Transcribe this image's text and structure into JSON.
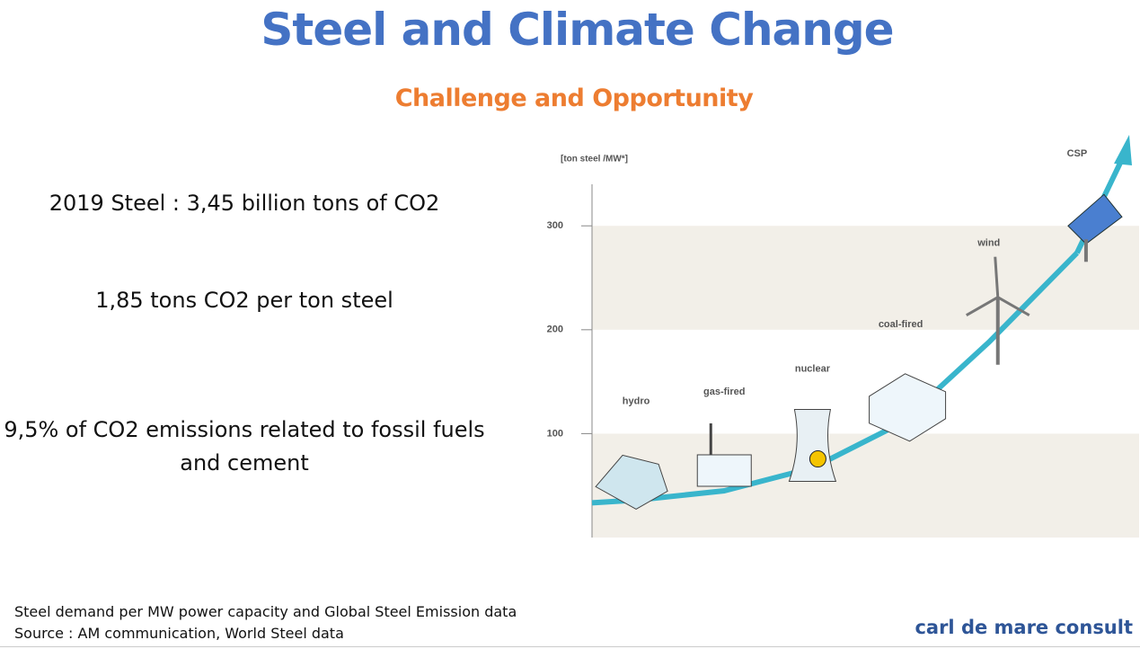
{
  "title": "Steel and Climate Change",
  "subtitle": "Challenge and Opportunity",
  "facts": [
    "2019 Steel : 3,45 billion tons of CO2",
    "1,85 tons CO2 per ton steel",
    "9,5% of CO2 emissions related to fossil fuels and cement"
  ],
  "footnote": [
    "Steel demand per MW power capacity and Global Steel Emission data",
    "Source : AM communication, World Steel data"
  ],
  "brand": "carl de mare consult",
  "chart_data": {
    "type": "line",
    "y_label": "[ton steel /MW*]",
    "categories": [
      "hydro",
      "gas-fired",
      "nuclear",
      "coal-fired",
      "wind",
      "CSP"
    ],
    "values": [
      36,
      45,
      67,
      110,
      188,
      274
    ],
    "color": "#39b5cc",
    "ylim": [
      0,
      340
    ],
    "yticks": [
      100,
      200,
      300
    ]
  }
}
